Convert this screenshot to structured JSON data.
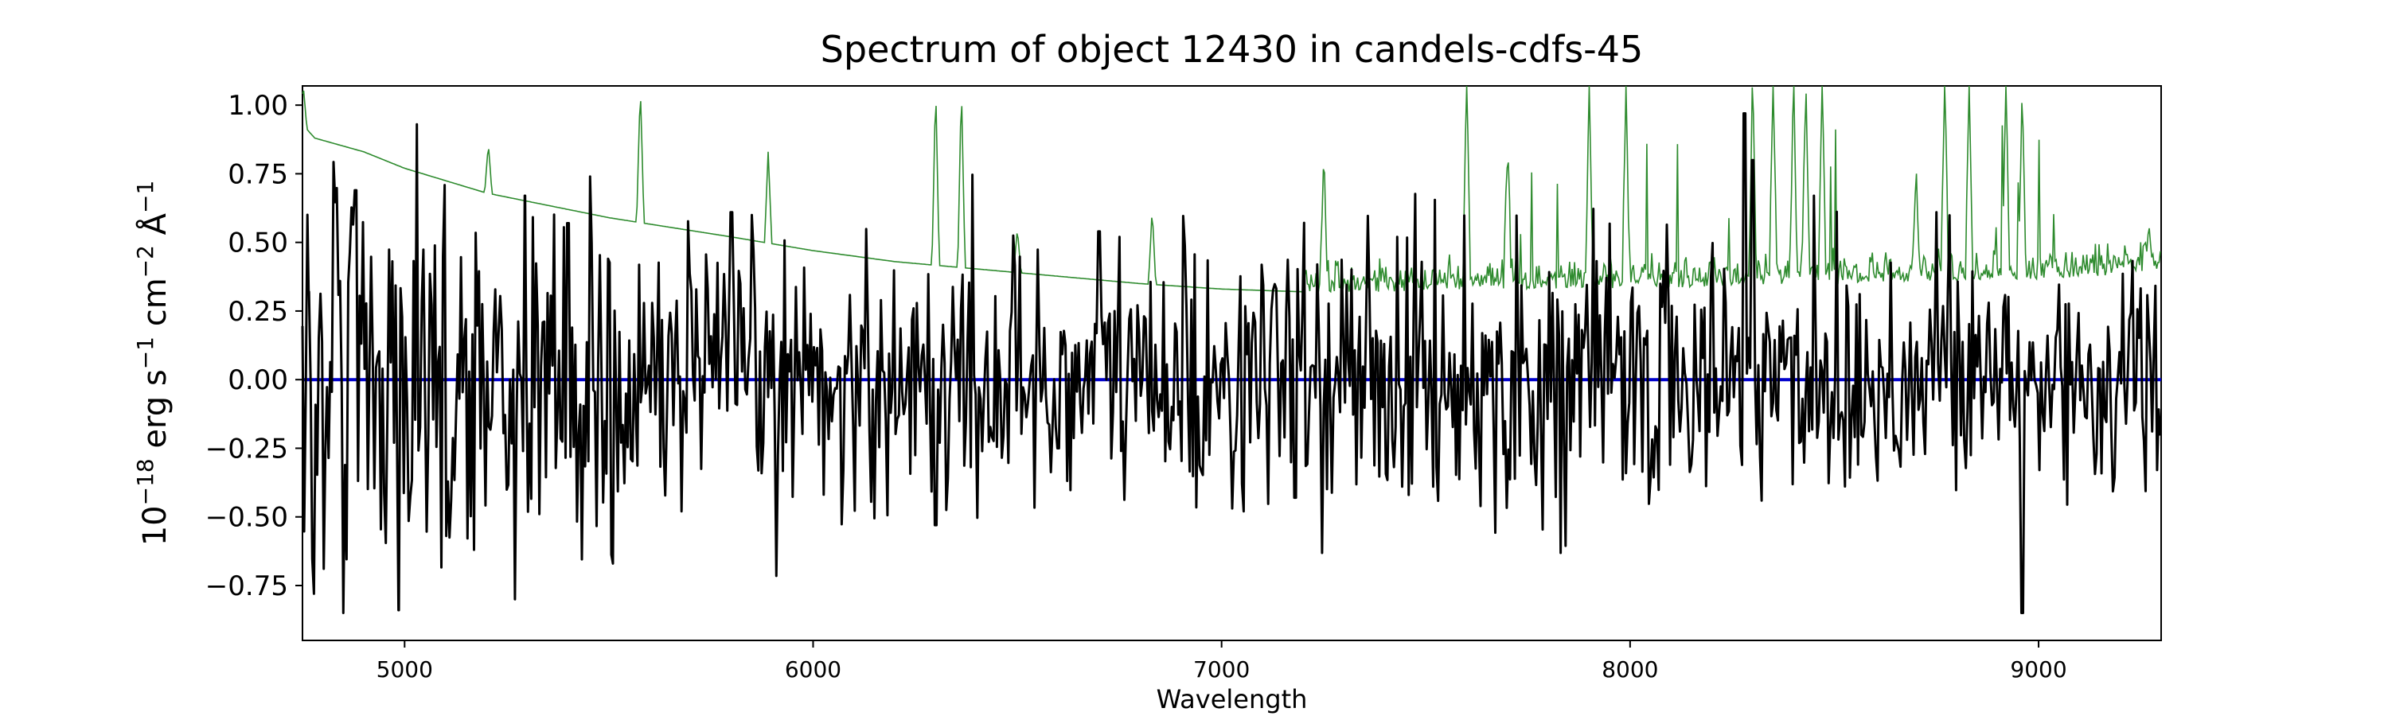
{
  "chart_data": {
    "type": "line",
    "title": "Spectrum of object 12430 in candels-cdfs-45",
    "xlabel": "Wavelength",
    "ylabel_parts": [
      "10",
      "−18",
      " erg s",
      "−1",
      " cm",
      "−2",
      " Å",
      "−1"
    ],
    "xlim": [
      4750,
      9300
    ],
    "ylim": [
      -0.95,
      1.07
    ],
    "x_ticks": [
      5000,
      6000,
      7000,
      8000,
      9000
    ],
    "y_ticks": [
      -0.75,
      -0.5,
      -0.25,
      0.0,
      0.25,
      0.5,
      0.75,
      1.0
    ],
    "x_tick_labels": [
      "5000",
      "6000",
      "7000",
      "8000",
      "9000"
    ],
    "y_tick_labels": [
      "−0.75",
      "−0.50",
      "−0.25",
      "0.00",
      "0.25",
      "0.50",
      "0.75",
      "1.00"
    ],
    "grid": false,
    "legend": "none",
    "series": [
      {
        "role": "error",
        "color": "#2e8b2e",
        "baseline": [
          [
            4750,
            0.93
          ],
          [
            4780,
            0.88
          ],
          [
            4900,
            0.83
          ],
          [
            5000,
            0.77
          ],
          [
            5200,
            0.68
          ],
          [
            5500,
            0.59
          ],
          [
            5800,
            0.52
          ],
          [
            6000,
            0.47
          ],
          [
            6200,
            0.43
          ],
          [
            6500,
            0.39
          ],
          [
            6800,
            0.35
          ],
          [
            7000,
            0.33
          ],
          [
            7200,
            0.32
          ],
          [
            7400,
            0.32
          ],
          [
            7600,
            0.33
          ],
          [
            8000,
            0.33
          ],
          [
            8400,
            0.35
          ],
          [
            8800,
            0.36
          ],
          [
            9100,
            0.37
          ],
          [
            9300,
            0.4
          ]
        ],
        "peaks": [
          [
            4752,
            1.07
          ],
          [
            5205,
            0.86
          ],
          [
            5577,
            1.07
          ],
          [
            5890,
            0.83
          ],
          [
            6300,
            1.07
          ],
          [
            6363,
            1.07
          ],
          [
            6500,
            0.55
          ],
          [
            6830,
            0.62
          ],
          [
            7250,
            0.8
          ],
          [
            7600,
            1.07
          ],
          [
            7700,
            0.82
          ],
          [
            7900,
            1.07
          ],
          [
            7990,
            1.07
          ],
          [
            8300,
            1.07
          ],
          [
            8350,
            1.07
          ],
          [
            8400,
            1.07
          ],
          [
            8430,
            1.07
          ],
          [
            8470,
            1.07
          ],
          [
            8700,
            0.7
          ],
          [
            8770,
            1.07
          ],
          [
            8830,
            1.07
          ],
          [
            8920,
            1.07
          ],
          [
            8960,
            1.07
          ],
          [
            9270,
            0.55
          ]
        ]
      },
      {
        "role": "model",
        "color": "#0000cc",
        "value": 0.0
      },
      {
        "role": "flux",
        "color": "#000000",
        "mean": 0.0,
        "spread": 0.28,
        "extremes": [
          [
            4765,
            0.32
          ],
          [
            4778,
            -0.78
          ],
          [
            4850,
            -0.85
          ],
          [
            4880,
            0.69
          ],
          [
            4985,
            -0.84
          ],
          [
            5030,
            0.93
          ],
          [
            5170,
            -0.62
          ],
          [
            5295,
            0.67
          ],
          [
            5400,
            0.57
          ],
          [
            5510,
            -0.67
          ],
          [
            5800,
            0.61
          ],
          [
            5830,
            0.26
          ],
          [
            6300,
            -0.53
          ],
          [
            6600,
            -0.25
          ],
          [
            6700,
            0.54
          ],
          [
            6750,
            0.52
          ],
          [
            7180,
            -0.43
          ],
          [
            7430,
            0.52
          ],
          [
            8280,
            0.97
          ],
          [
            8300,
            0.8
          ],
          [
            8450,
            0.67
          ],
          [
            8750,
            0.61
          ],
          [
            8960,
            -0.85
          ]
        ]
      }
    ]
  }
}
